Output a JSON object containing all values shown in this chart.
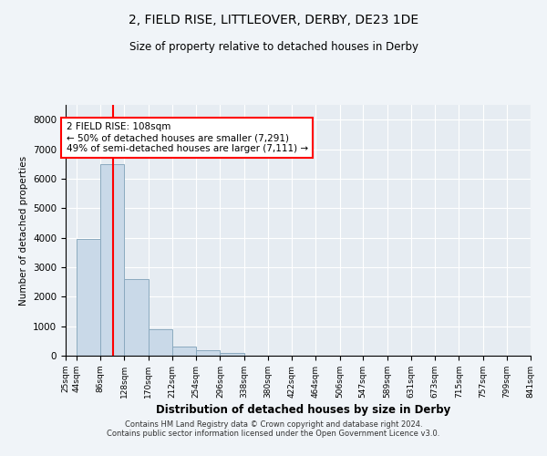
{
  "title": "2, FIELD RISE, LITTLEOVER, DERBY, DE23 1DE",
  "subtitle": "Size of property relative to detached houses in Derby",
  "xlabel": "Distribution of detached houses by size in Derby",
  "ylabel": "Number of detached properties",
  "annotation_line1": "2 FIELD RISE: 108sqm",
  "annotation_line2": "← 50% of detached houses are smaller (7,291)",
  "annotation_line3": "49% of semi-detached houses are larger (7,111) →",
  "footer1": "Contains HM Land Registry data © Crown copyright and database right 2024.",
  "footer2": "Contains public sector information licensed under the Open Government Licence v3.0.",
  "bar_color": "#c9d9e8",
  "bar_edge_color": "#8baabf",
  "red_line_x": 108,
  "ylim": [
    0,
    8500
  ],
  "yticks": [
    0,
    1000,
    2000,
    3000,
    4000,
    5000,
    6000,
    7000,
    8000
  ],
  "bin_edges": [
    25,
    44,
    86,
    128,
    170,
    212,
    254,
    296,
    338,
    380,
    422,
    464,
    506,
    547,
    589,
    631,
    673,
    715,
    757,
    799,
    841
  ],
  "bin_heights": [
    5,
    3950,
    6500,
    2600,
    900,
    300,
    200,
    100,
    0,
    0,
    0,
    0,
    0,
    0,
    0,
    0,
    0,
    0,
    0,
    0
  ],
  "background_color": "#f0f4f8",
  "plot_bg_color": "#e6ecf2"
}
